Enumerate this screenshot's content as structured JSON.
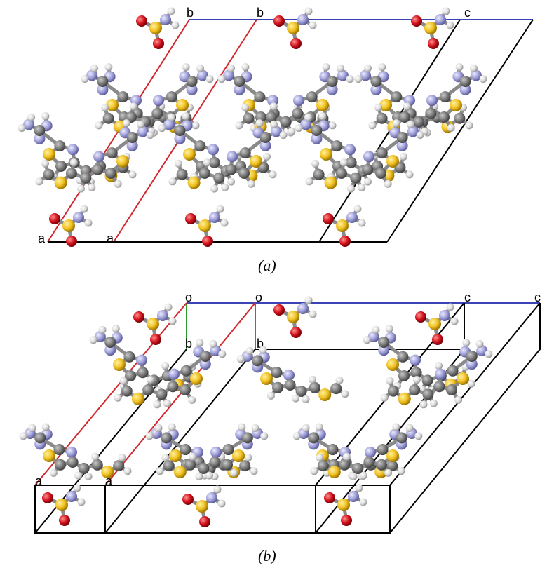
{
  "panel_a": {
    "caption": "(a)",
    "axis_labels": {
      "b1": "b",
      "b2": "b",
      "c": "c",
      "a1": "a",
      "a2": "a"
    }
  },
  "panel_b": {
    "caption": "(b)",
    "axis_labels": {
      "o1": "o",
      "o2": "o",
      "c1": "c",
      "c2": "c",
      "b1": "b",
      "b2": "b",
      "a1": "a",
      "a2": "a"
    }
  },
  "colors": {
    "cell_edge": "#000000",
    "a_axis": "#d0282c",
    "b_axis_green": "#2a9a2a",
    "c_axis": "#3a44b4",
    "carbon": "#7a7a7a",
    "nitrogen": "#9e9ed8",
    "sulfur": "#f0c020",
    "oxygen": "#d0101a",
    "hydrogen": "#e0e0e0"
  }
}
